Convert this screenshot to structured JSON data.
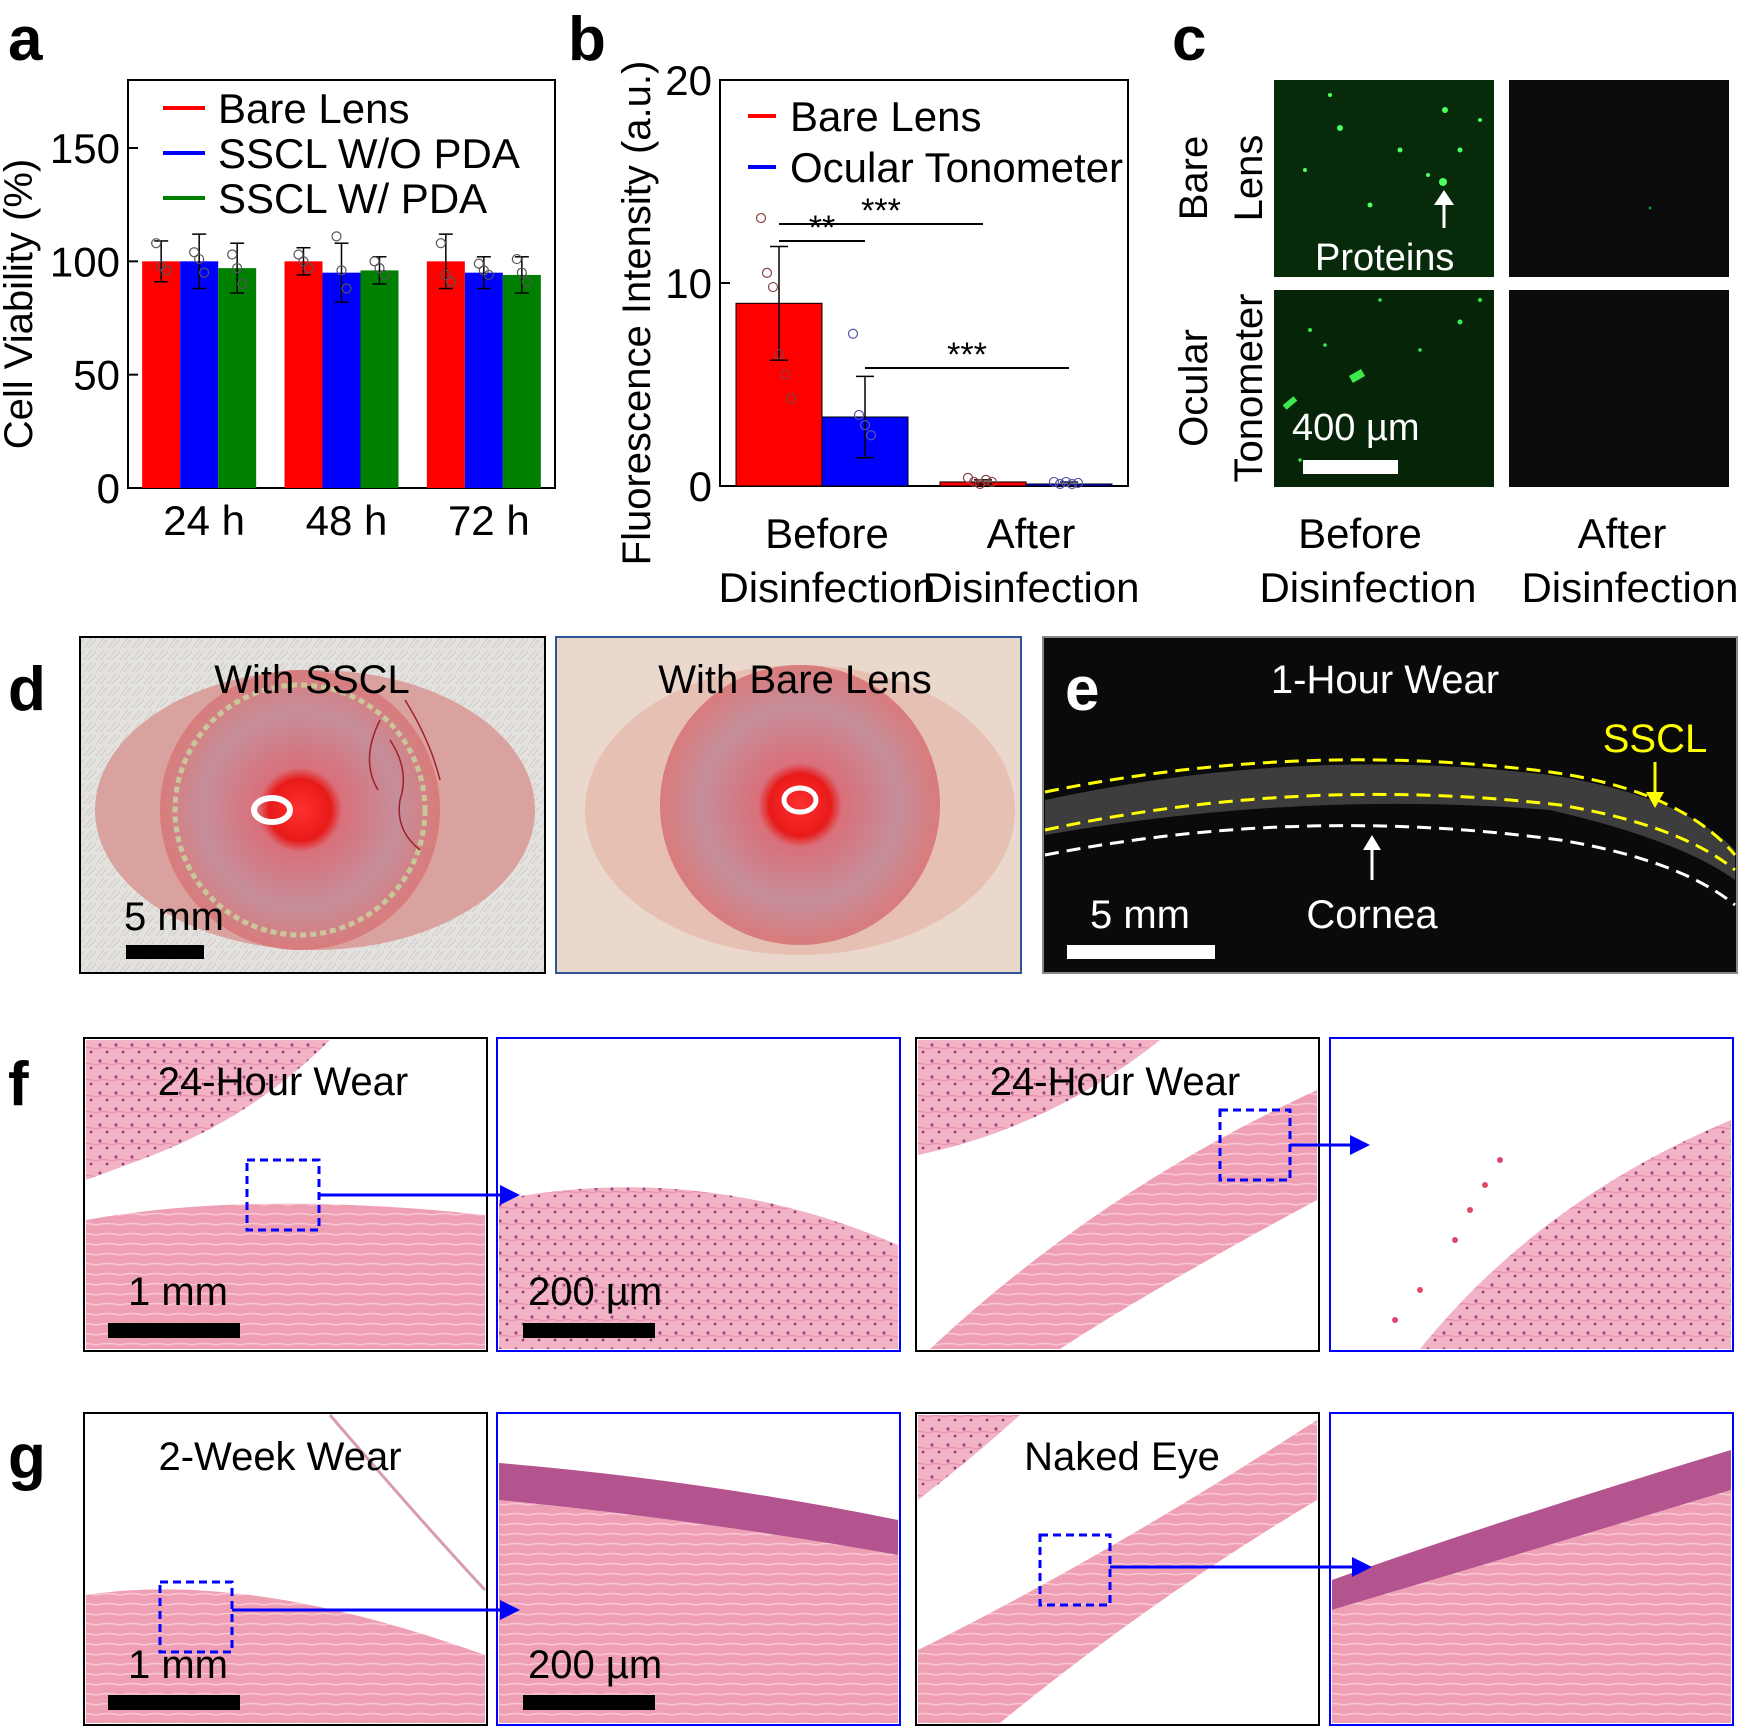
{
  "panels": {
    "a": {
      "letter": "a"
    },
    "b": {
      "letter": "b"
    },
    "c": {
      "letter": "c"
    },
    "d": {
      "letter": "d"
    },
    "e": {
      "letter": "e"
    },
    "f": {
      "letter": "f"
    },
    "g": {
      "letter": "g"
    }
  },
  "colors": {
    "red": "#ff0000",
    "blue": "#0000ff",
    "green": "#008000",
    "yellow": "#ffff00",
    "fluor": "#39d84a"
  },
  "chart_data": [
    {
      "type": "bar",
      "panel": "a",
      "categories": [
        "24 h",
        "48 h",
        "72 h"
      ],
      "series": [
        {
          "name": "Bare Lens",
          "color": "#ff0000",
          "values": [
            100,
            100,
            100
          ],
          "err": [
            9,
            6,
            12
          ],
          "points": [
            [
              108,
              98,
              96
            ],
            [
              103,
              100,
              97
            ],
            [
              108,
              94,
              91
            ]
          ]
        },
        {
          "name": "SSCL W/O PDA",
          "color": "#0000ff",
          "values": [
            100,
            95,
            95
          ],
          "err": [
            12,
            13,
            7
          ],
          "points": [
            [
              104,
              101,
              95
            ],
            [
              111,
              96,
              88
            ],
            [
              99,
              96,
              94
            ]
          ]
        },
        {
          "name": "SSCL W/ PDA",
          "color": "#008000",
          "values": [
            97,
            96,
            94
          ],
          "err": [
            11,
            6,
            8
          ],
          "points": [
            [
              103,
              97,
              90
            ],
            [
              100,
              97,
              94
            ],
            [
              101,
              95,
              91
            ]
          ]
        }
      ],
      "ylabel": "Cell Viability (%)",
      "ylim": [
        0,
        180
      ],
      "yticks": [
        "0",
        "50",
        "100",
        "150"
      ],
      "legend": "top-left"
    },
    {
      "type": "bar",
      "panel": "b",
      "categories": [
        "Before Disinfection",
        "After Disinfection"
      ],
      "category_lines": [
        [
          "Before",
          "Disinfection"
        ],
        [
          "After",
          "Disinfection"
        ]
      ],
      "series": [
        {
          "name": "Bare Lens",
          "color": "#ff0000",
          "values": [
            9.0,
            0.2
          ],
          "err": [
            2.8,
            0.1
          ],
          "points": [
            [
              13.2,
              10.5,
              9.8,
              6.5,
              5.5,
              4.3
            ],
            [
              0.4,
              0.2,
              0.1,
              0.3,
              0.2
            ]
          ]
        },
        {
          "name": "Ocular Tonometer",
          "color": "#0000ff",
          "values": [
            3.4,
            0.1
          ],
          "err": [
            2.0,
            0.1
          ],
          "points": [
            [
              7.5,
              3.5,
              3.0,
              2.5
            ],
            [
              0.2,
              0.1,
              0.2,
              0.1,
              0.15
            ]
          ]
        }
      ],
      "ylabel": "Fluorescence Intensity (a.u.)",
      "ylim": [
        0,
        20
      ],
      "yticks": [
        "0",
        "10",
        "20"
      ],
      "legend": "top-left",
      "annotations": [
        "***",
        "**",
        "***"
      ]
    }
  ],
  "panel_c": {
    "row_labels": [
      [
        "Bare",
        "Lens"
      ],
      [
        "Ocular",
        "Tonometer"
      ]
    ],
    "col_labels": [
      [
        "Before",
        "Disinfection"
      ],
      [
        "After",
        "Disinfection"
      ]
    ],
    "proteins_label": "Proteins",
    "scale_label": "400 µm"
  },
  "panel_d": {
    "left_title": "With SSCL",
    "right_title": "With Bare Lens",
    "scale_label": "5 mm"
  },
  "panel_e": {
    "title": "1-Hour Wear",
    "sscl_label": "SSCL",
    "cornea_label": "Cornea",
    "scale_label": "5 mm"
  },
  "panel_f": {
    "left_title": "24-Hour Wear",
    "right_title": "24-Hour Wear",
    "scale_1mm": "1 mm",
    "scale_200um": "200 µm"
  },
  "panel_g": {
    "left_title": "2-Week Wear",
    "right_title": "Naked Eye",
    "scale_1mm": "1 mm",
    "scale_200um": "200 µm"
  }
}
